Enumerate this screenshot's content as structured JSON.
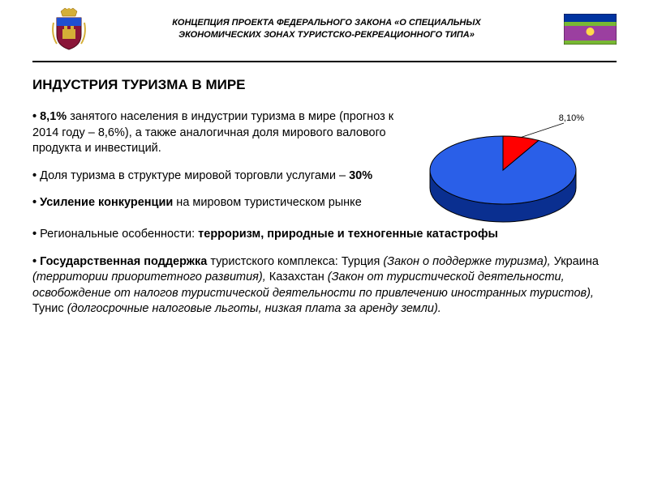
{
  "header": {
    "title_line1": "КОНЦЕПЦИЯ ПРОЕКТА ФЕДЕРАЛЬНОГО ЗАКОНА «О СПЕЦИАЛЬНЫХ",
    "title_line2": "ЭКОНОМИЧЕСКИХ ЗОНАХ ТУРИСТСКО-РЕКРЕАЦИОННОГО ТИПА»"
  },
  "flag": {
    "stripe_colors": [
      "#0033a0",
      "#78b833",
      "#9b3fa0",
      "#78b833"
    ],
    "stripe_heights": [
      10,
      5,
      18,
      5
    ],
    "emblem_color": "#ffd94a"
  },
  "coat_of_arms": {
    "crown_color": "#c9a227",
    "body_color": "#8a1538",
    "accent_color": "#1f4fd1",
    "gold": "#d4af37"
  },
  "main_title": "ИНДУСТРИЯ ТУРИЗМА В МИРЕ",
  "pie_chart": {
    "type": "pie-3d",
    "label": "8,10%",
    "slices": [
      {
        "value": 8.1,
        "color": "#ff0000",
        "side_color": "#a00000"
      },
      {
        "value": 91.9,
        "color": "#2a5fe8",
        "side_color": "#0a2f90"
      }
    ],
    "outline_color": "#000000",
    "background_color": "#ffffff",
    "label_fontsize": 11,
    "thickness": 22
  },
  "bullets": {
    "b1_lead": "8,1%",
    "b1_rest": " занятого населения в индустрии туризма в мире (прогноз к 2014 году – 8,6%), а также аналогичная доля мирового валового продукта и инвестиций.",
    "b2_pre": "Доля туризма в структуре мировой торговли услугами – ",
    "b2_bold": "30%",
    "b3_bold": "Усиление конкуренции",
    "b3_rest": " на мировом туристическом рынке",
    "b4_pre": "Региональные особенности: ",
    "b4_bold": "терроризм, природные и техногенные катастрофы",
    "b5_bold": "Государственная поддержка",
    "b5_a": " туристского комплекса: Турция ",
    "b5_i1": "(Закон о поддержке туризма),",
    "b5_b": " Украина ",
    "b5_i2": "(территории приоритетного развития),",
    "b5_c": " Казахстан ",
    "b5_i3": "(Закон от туристической деятельности, освобождение от налогов туристической деятельности по привлечению иностранных туристов),",
    "b5_d": " Тунис ",
    "b5_i4": "(долгосрочные налоговые льготы, низкая плата за аренду земли)."
  }
}
